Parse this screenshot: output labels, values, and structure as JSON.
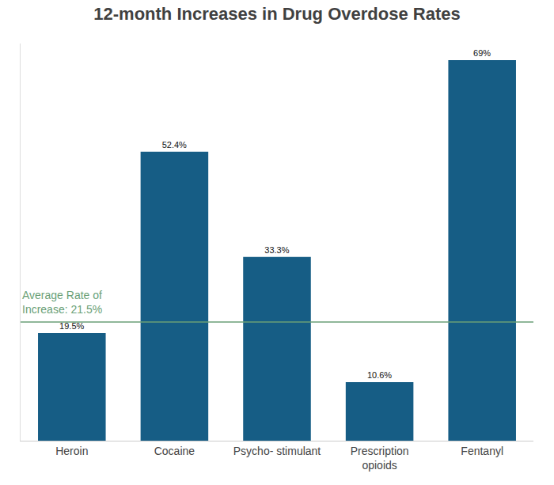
{
  "chart_data": {
    "type": "bar",
    "title": "12-month Increases in Drug Overdose Rates",
    "categories": [
      "Heroin",
      "Cocaine",
      "Psycho- stimulant",
      "Prescription opioids",
      "Fentanyl"
    ],
    "values": [
      19.5,
      52.4,
      33.3,
      10.6,
      69
    ],
    "value_labels": [
      "19.5%",
      "52.4%",
      "33.3%",
      "10.6%",
      "69%"
    ],
    "data_labels": true,
    "color": "#165d85",
    "ylim": [
      0,
      72
    ],
    "yticks": [],
    "tick_labels": "x",
    "grid": false,
    "reference_line": {
      "label": "Average Rate of Increase: 21.5%",
      "value": 21.5,
      "color": "#6a9f77"
    }
  }
}
